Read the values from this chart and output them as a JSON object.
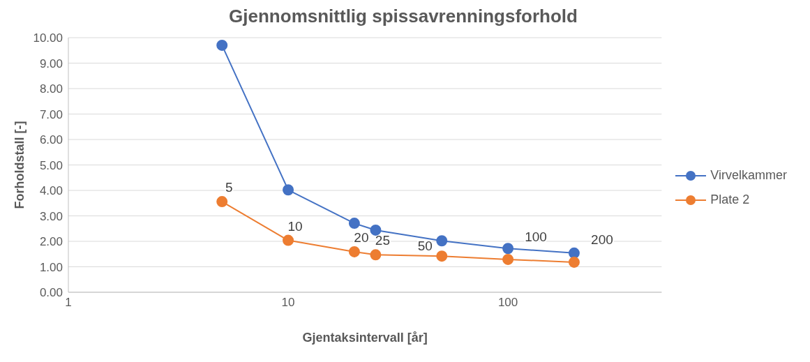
{
  "chart_data": {
    "type": "line",
    "title": "Gjennomsnittlig spissavrenningsforhold",
    "xlabel": "Gjentaksintervall [år]",
    "ylabel": "Forholdstall [-]",
    "x": [
      5,
      10,
      20,
      25,
      50,
      100,
      200
    ],
    "series": [
      {
        "name": "Virvelkammer",
        "color": "#4472c4",
        "values": [
          9.7,
          4.02,
          2.71,
          2.44,
          2.02,
          1.72,
          1.54
        ]
      },
      {
        "name": "Plate 2",
        "color": "#ed7d31",
        "values": [
          3.56,
          2.04,
          1.59,
          1.47,
          1.42,
          1.29,
          1.18
        ]
      }
    ],
    "annotations": [
      {
        "text": "5",
        "x": 5,
        "y": 3.56
      },
      {
        "text": "10",
        "x": 10,
        "y": 2.04
      },
      {
        "text": "20",
        "x": 20,
        "y": 1.59
      },
      {
        "text": "25",
        "x": 25,
        "y": 1.47
      },
      {
        "text": "50",
        "x": 50,
        "y": 1.42
      },
      {
        "text": "100",
        "x": 100,
        "y": 1.29
      },
      {
        "text": "200",
        "x": 200,
        "y": 1.18
      }
    ],
    "log": "x",
    "xlim": [
      1,
      500
    ],
    "xticks": [
      1,
      10,
      100
    ],
    "ylim": [
      0,
      10
    ],
    "yticks": [
      {
        "value": 0,
        "label": "0.00"
      },
      {
        "value": 1,
        "label": "1.00"
      },
      {
        "value": 2,
        "label": "2.00"
      },
      {
        "value": 3,
        "label": "3.00"
      },
      {
        "value": 4,
        "label": "4.00"
      },
      {
        "value": 5,
        "label": "5.00"
      },
      {
        "value": 6,
        "label": "6.00"
      },
      {
        "value": 7,
        "label": "7.00"
      },
      {
        "value": 8,
        "label": "8.00"
      },
      {
        "value": 9,
        "label": "9.00"
      },
      {
        "value": 10,
        "label": "10.00"
      }
    ],
    "grid": "y",
    "legend": "right",
    "marker": "circle",
    "line_style": "solid"
  }
}
